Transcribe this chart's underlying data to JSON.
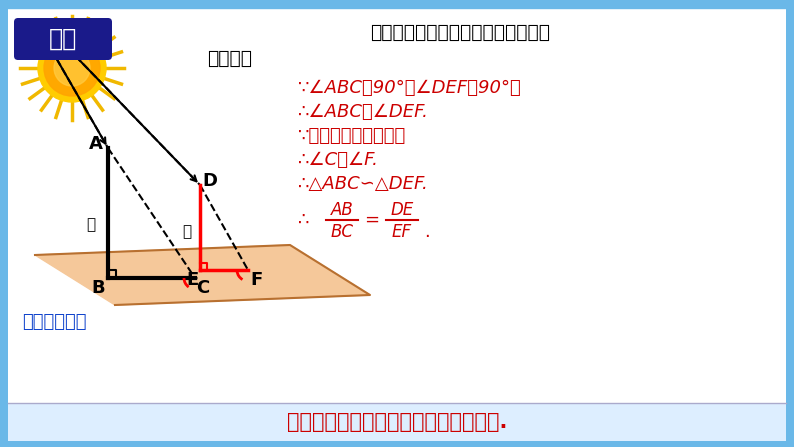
{
  "bg_outer": "#6ab8e8",
  "bg_main": "#ffffff",
  "bottom_bar_bg": "#ddeeff",
  "title_line1": "在太阳光下，物体的高度与影长有什",
  "title_line2": "么关系？",
  "explore_text": "探究",
  "ground_color": "#f5c89a",
  "ground_stroke": "#b87030",
  "line1": "∵∠ABC＝90°，∠DEF＝90°，",
  "line2": "∴∠ABC＝∠DEF.",
  "line3": "∵太阳光线是平行的，",
  "line4": "∴∠C＝∠F.",
  "line5": "∴△ABC∽△DEF.",
  "bottom_text": "同一时间、同一地点物高与影长成比例.",
  "try_text": "尝试画出影子",
  "red": "#cc0000",
  "blue": "#1144cc",
  "darkblue": "#1a1a8a",
  "white": "#ffffff",
  "black": "#000000"
}
